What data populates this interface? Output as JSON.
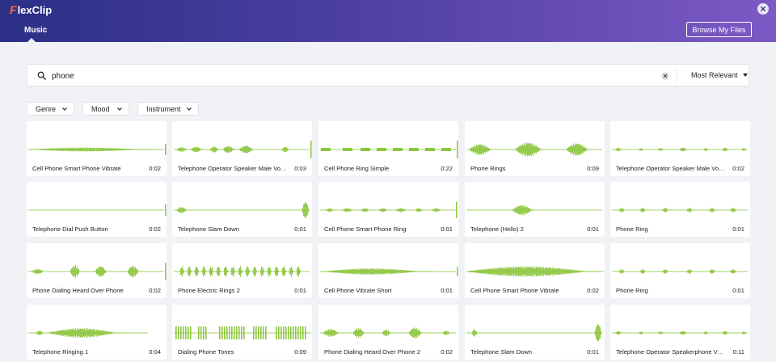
{
  "app": {
    "logo_text": "lexClip",
    "logo_mark": "F"
  },
  "header": {
    "tab_music": "Music",
    "browse_button": "Browse My Files"
  },
  "search": {
    "value": "phone",
    "sort_label": "Most Relevant"
  },
  "filters": [
    {
      "label": "Genre"
    },
    {
      "label": "Mood"
    },
    {
      "label": "Instrument"
    }
  ],
  "colors": {
    "waveform": "#8dc63f",
    "header_start": "#2b2f86",
    "header_end": "#7d59c6"
  },
  "tracks": [
    {
      "title": "Cell Phone Smart Phone Vibrate",
      "duration": "0:02",
      "pattern": "solid"
    },
    {
      "title": "Telephone Operator Speaker Male Voic...",
      "duration": "0:03",
      "pattern": "voice"
    },
    {
      "title": "Cell Phone Ring Simple",
      "duration": "0:22",
      "pattern": "dashes"
    },
    {
      "title": "Phone Rings",
      "duration": "0:09",
      "pattern": "rings"
    },
    {
      "title": "Telephone Operator Speaker Male Voic...",
      "duration": "0:02",
      "pattern": "voice_sparse"
    },
    {
      "title": "Telephone Dial Push Button",
      "duration": "0:02",
      "pattern": "flat_end"
    },
    {
      "title": "Telephone Slam Down",
      "duration": "0:01",
      "pattern": "slam"
    },
    {
      "title": "Cell Phone Smart Phone Ring",
      "duration": "0:01",
      "pattern": "beads"
    },
    {
      "title": "Telephone (Hello) 2",
      "duration": "0:01",
      "pattern": "hello"
    },
    {
      "title": "Phone Ring",
      "duration": "0:01",
      "pattern": "blips"
    },
    {
      "title": "Phone Dialing Heard Over Phone",
      "duration": "0:02",
      "pattern": "dialing"
    },
    {
      "title": "Phone Electric Rings 2",
      "duration": "0:01",
      "pattern": "electric"
    },
    {
      "title": "Cell Phone Vibrate Short",
      "duration": "0:01",
      "pattern": "tapered"
    },
    {
      "title": "Cell Phone Smart Phone Vibrate",
      "duration": "0:02",
      "pattern": "block"
    },
    {
      "title": "Phone Ring",
      "duration": "0:01",
      "pattern": "blips"
    },
    {
      "title": "Telephone Ringing 1",
      "duration": "0:04",
      "pattern": "ringing"
    },
    {
      "title": "Dialing Phone Tones",
      "duration": "0:09",
      "pattern": "tones"
    },
    {
      "title": "Phone Dialing Heard Over Phone 2",
      "duration": "0:02",
      "pattern": "dialing2"
    },
    {
      "title": "Telephone Slam Down",
      "duration": "0:01",
      "pattern": "slam2"
    },
    {
      "title": "Telephone Operator Speakerphone Voi...",
      "duration": "0:11",
      "pattern": "voice_sparse"
    }
  ]
}
